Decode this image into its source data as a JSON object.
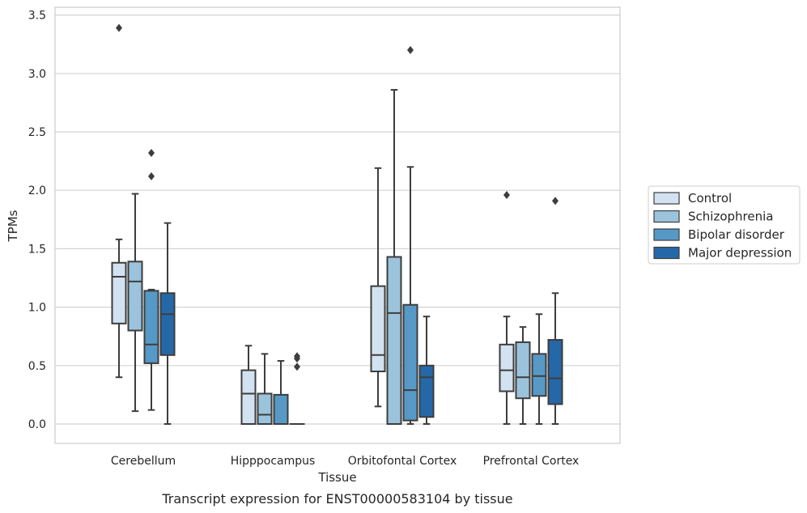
{
  "chart_data": {
    "type": "box",
    "xlabel": "Tissue",
    "ylabel": "TPMs",
    "caption": "Transcript expression for ENST00000583104 by tissue",
    "ylim": [
      -0.16,
      3.57
    ],
    "yticks": [
      "0.0",
      "0.5",
      "1.0",
      "1.5",
      "2.0",
      "2.5",
      "3.0",
      "3.5"
    ],
    "grid": "horizontal",
    "legend_position": "right",
    "categories": [
      "Cerebellum",
      "Hipppocampus",
      "Orbitofontal Cortex",
      "Prefrontal Cortex"
    ],
    "series": [
      {
        "name": "Control",
        "color": "#d2e2f0",
        "boxes": [
          {
            "whisker_low": 0.4,
            "q1": 0.86,
            "median": 1.26,
            "q3": 1.38,
            "whisker_high": 1.58,
            "outliers": [
              3.39
            ]
          },
          {
            "whisker_low": 0.0,
            "q1": 0.0,
            "median": 0.26,
            "q3": 0.46,
            "whisker_high": 0.67,
            "outliers": []
          },
          {
            "whisker_low": 0.15,
            "q1": 0.45,
            "median": 0.59,
            "q3": 1.18,
            "whisker_high": 2.19,
            "outliers": []
          },
          {
            "whisker_low": 0.0,
            "q1": 0.28,
            "median": 0.46,
            "q3": 0.68,
            "whisker_high": 0.92,
            "outliers": [
              1.96
            ]
          }
        ]
      },
      {
        "name": "Schizophrenia",
        "color": "#9cc3dc",
        "boxes": [
          {
            "whisker_low": 0.11,
            "q1": 0.8,
            "median": 1.22,
            "q3": 1.39,
            "whisker_high": 1.97,
            "outliers": []
          },
          {
            "whisker_low": 0.0,
            "q1": 0.0,
            "median": 0.08,
            "q3": 0.26,
            "whisker_high": 0.6,
            "outliers": []
          },
          {
            "whisker_low": 0.0,
            "q1": 0.0,
            "median": 0.95,
            "q3": 1.43,
            "whisker_high": 2.86,
            "outliers": []
          },
          {
            "whisker_low": 0.0,
            "q1": 0.22,
            "median": 0.4,
            "q3": 0.7,
            "whisker_high": 0.83,
            "outliers": []
          }
        ]
      },
      {
        "name": "Bipolar disorder",
        "color": "#5799c6",
        "boxes": [
          {
            "whisker_low": 0.12,
            "q1": 0.52,
            "median": 0.68,
            "q3": 1.14,
            "whisker_high": 1.15,
            "outliers": [
              2.12,
              2.32
            ]
          },
          {
            "whisker_low": 0.0,
            "q1": 0.0,
            "median": 0.0,
            "q3": 0.25,
            "whisker_high": 0.54,
            "outliers": []
          },
          {
            "whisker_low": 0.0,
            "q1": 0.03,
            "median": 0.29,
            "q3": 1.02,
            "whisker_high": 2.2,
            "outliers": [
              3.2
            ]
          },
          {
            "whisker_low": 0.0,
            "q1": 0.24,
            "median": 0.41,
            "q3": 0.6,
            "whisker_high": 0.94,
            "outliers": []
          }
        ]
      },
      {
        "name": "Major depression",
        "color": "#2568a8",
        "boxes": [
          {
            "whisker_low": 0.0,
            "q1": 0.59,
            "median": 0.94,
            "q3": 1.12,
            "whisker_high": 1.72,
            "outliers": []
          },
          {
            "whisker_low": 0.0,
            "q1": 0.0,
            "median": 0.0,
            "q3": 0.0,
            "whisker_high": 0.0,
            "outliers": [
              0.49,
              0.56,
              0.58
            ]
          },
          {
            "whisker_low": 0.0,
            "q1": 0.06,
            "median": 0.4,
            "q3": 0.5,
            "whisker_high": 0.92,
            "outliers": []
          },
          {
            "whisker_low": 0.0,
            "q1": 0.17,
            "median": 0.39,
            "q3": 0.72,
            "whisker_high": 1.12,
            "outliers": [
              1.91
            ]
          }
        ]
      }
    ]
  }
}
